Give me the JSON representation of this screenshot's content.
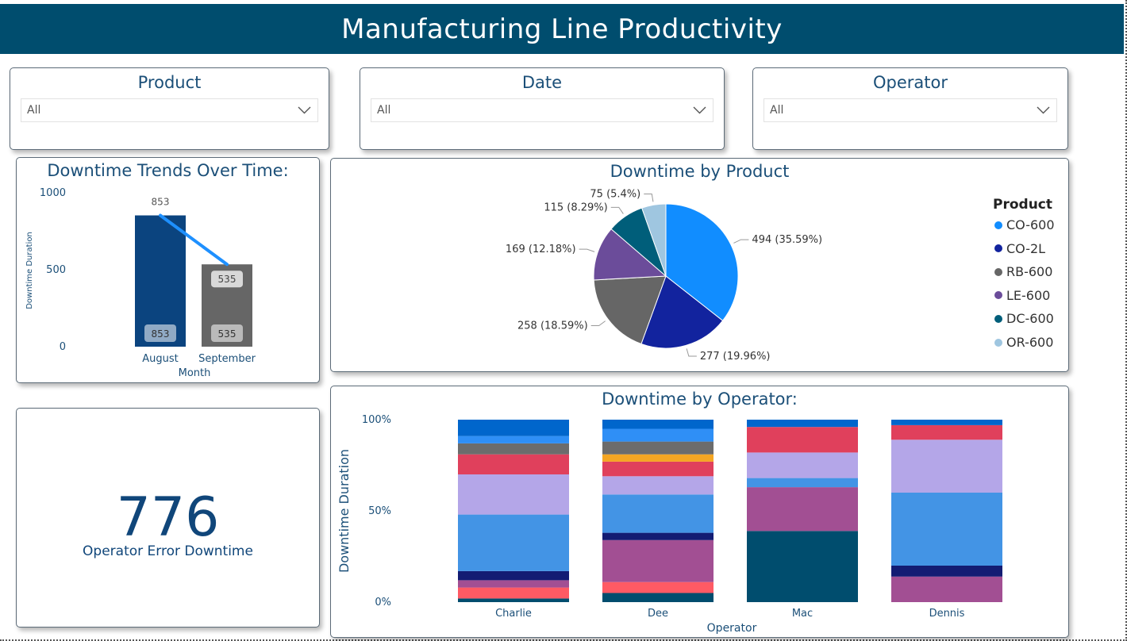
{
  "header": {
    "title": "Manufacturing Line Productivity"
  },
  "slicers": [
    {
      "title": "Product",
      "value": "All"
    },
    {
      "title": "Date",
      "value": "All"
    },
    {
      "title": "Operator",
      "value": "All"
    }
  ],
  "trend": {
    "title": "Downtime Trends Over Time:",
    "chart_data": {
      "type": "bar",
      "title": "Downtime Trends Over Time:",
      "xlabel": "Month",
      "ylabel": "Downtime Duration",
      "categories": [
        "August",
        "September"
      ],
      "values": [
        853,
        535
      ],
      "line_values": [
        853,
        535
      ],
      "yticks": [
        "1000",
        "500",
        "0"
      ],
      "ylim": [
        0,
        1000
      ],
      "colors": [
        "#0B447F",
        "#666666"
      ],
      "line_color": "#1E90FF"
    }
  },
  "kpi": {
    "value": "776",
    "label": "Operator Error Downtime"
  },
  "pie": {
    "title": "Downtime by Product",
    "legend_title": "Product",
    "chart_data": {
      "type": "pie",
      "title": "Downtime by Product",
      "slices": [
        {
          "name": "CO-600",
          "value": 494,
          "label": "494 (35.59%)",
          "color": "#118DFF"
        },
        {
          "name": "CO-2L",
          "value": 277,
          "label": "277 (19.96%)",
          "color": "#12239E"
        },
        {
          "name": "RB-600",
          "value": 258,
          "label": "258 (18.59%)",
          "color": "#666666"
        },
        {
          "name": "LE-600",
          "value": 169,
          "label": "169 (12.18%)",
          "color": "#6B4C9A"
        },
        {
          "name": "DC-600",
          "value": 115,
          "label": "115 (8.29%)",
          "color": "#005E7A"
        },
        {
          "name": "OR-600",
          "value": 75,
          "label": "75 (5.4%)",
          "color": "#9FC6E0"
        }
      ]
    }
  },
  "operator": {
    "title": "Downtime by Operator:",
    "chart_data": {
      "type": "bar",
      "stacked": "100%",
      "title": "Downtime by Operator:",
      "xlabel": "Operator",
      "ylabel": "Downtime Duration",
      "yticks": [
        "100%",
        "50%",
        "0%"
      ],
      "categories": [
        "Charlie",
        "Dee",
        "Mac",
        "Dennis"
      ],
      "segments": [
        [
          {
            "value": 2,
            "color": "#004D6E"
          },
          {
            "value": 6,
            "color": "#FF5A64"
          },
          {
            "value": 4,
            "color": "#A24F93"
          },
          {
            "value": 5,
            "color": "#131C73"
          },
          {
            "value": 31,
            "color": "#4394E5"
          },
          {
            "value": 22,
            "color": "#B4A6E8"
          },
          {
            "value": 11,
            "color": "#E0405C"
          },
          {
            "value": 6,
            "color": "#6C6C6C"
          },
          {
            "value": 4,
            "color": "#2F8FF6"
          },
          {
            "value": 9,
            "color": "#0066CC"
          }
        ],
        [
          {
            "value": 5,
            "color": "#004D6E"
          },
          {
            "value": 6,
            "color": "#FF5A64"
          },
          {
            "value": 23,
            "color": "#A24F93"
          },
          {
            "value": 4,
            "color": "#131C73"
          },
          {
            "value": 21,
            "color": "#4394E5"
          },
          {
            "value": 10,
            "color": "#B4A6E8"
          },
          {
            "value": 8,
            "color": "#E0405C"
          },
          {
            "value": 4,
            "color": "#F5A623"
          },
          {
            "value": 7,
            "color": "#6C6C6C"
          },
          {
            "value": 7,
            "color": "#2F8FF6"
          },
          {
            "value": 5,
            "color": "#0066CC"
          }
        ],
        [
          {
            "value": 39,
            "color": "#004D6E"
          },
          {
            "value": 24,
            "color": "#A24F93"
          },
          {
            "value": 5,
            "color": "#4394E5"
          },
          {
            "value": 14,
            "color": "#B4A6E8"
          },
          {
            "value": 14,
            "color": "#E0405C"
          },
          {
            "value": 4,
            "color": "#0066CC"
          }
        ],
        [
          {
            "value": 14,
            "color": "#A24F93"
          },
          {
            "value": 6,
            "color": "#131C73"
          },
          {
            "value": 40,
            "color": "#4394E5"
          },
          {
            "value": 29,
            "color": "#B4A6E8"
          },
          {
            "value": 8,
            "color": "#E0405C"
          },
          {
            "value": 3,
            "color": "#0066CC"
          }
        ]
      ]
    }
  }
}
